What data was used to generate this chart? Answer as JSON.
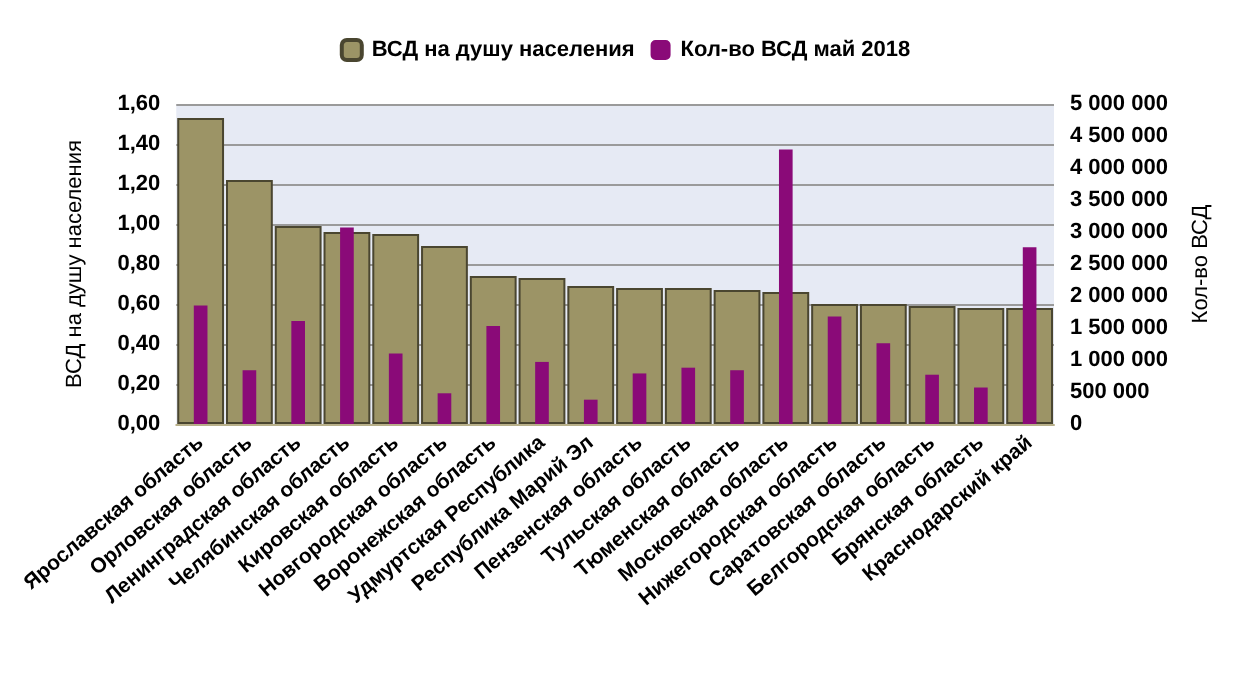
{
  "chart_data": {
    "type": "bar",
    "ylabel": "ВСД на душу населения",
    "y2label": "Кол-во ВСД",
    "categories": [
      "Ярославская область",
      "Орловская область",
      "Ленинградская область",
      "Челябинская область",
      "Кировская область",
      "Новгородская область",
      "Воронежская область",
      "Удмуртская Республика",
      "Республика Марий Эл",
      "Пензенская область",
      "Тульская область",
      "Тюменская область",
      "Московская область",
      "Нижегородская область",
      "Саратовская область",
      "Белгородская область",
      "Брянская область",
      "Краснодарский край"
    ],
    "series": [
      {
        "name": "ВСД на душу населения",
        "color": "#9c9466",
        "values": [
          1.53,
          1.22,
          0.99,
          0.96,
          0.95,
          0.89,
          0.74,
          0.73,
          0.69,
          0.68,
          0.68,
          0.67,
          0.66,
          0.6,
          0.6,
          0.59,
          0.58,
          0.58
        ]
      },
      {
        "name": "Кол-во ВСД май 2018",
        "color": "#8a0a78",
        "axis": "y2",
        "values": [
          1850000,
          840000,
          1610000,
          3070000,
          1100000,
          480000,
          1530000,
          970000,
          380000,
          790000,
          880000,
          840000,
          4290000,
          1680000,
          1260000,
          770000,
          570000,
          2760000
        ]
      }
    ],
    "ylim": [
      0,
      1.6
    ],
    "yticks": [
      {
        "value": 0,
        "label": "0,00"
      },
      {
        "value": 0.2,
        "label": "0,20"
      },
      {
        "value": 0.4,
        "label": "0,40"
      },
      {
        "value": 0.6,
        "label": "0,60"
      },
      {
        "value": 0.8,
        "label": "0,80"
      },
      {
        "value": 1,
        "label": "1,00"
      },
      {
        "value": 1.2,
        "label": "1,20"
      },
      {
        "value": 1.4,
        "label": "1,40"
      },
      {
        "value": 1.6,
        "label": "1,60"
      }
    ],
    "y2lim": [
      0,
      5000000
    ],
    "y2ticks": [
      {
        "value": 0,
        "label": "0"
      },
      {
        "value": 500000,
        "label": "500 000"
      },
      {
        "value": 1000000,
        "label": "1 000 000"
      },
      {
        "value": 1500000,
        "label": "1 500 000"
      },
      {
        "value": 2000000,
        "label": "2 000 000"
      },
      {
        "value": 2500000,
        "label": "2 500 000"
      },
      {
        "value": 3000000,
        "label": "3 000 000"
      },
      {
        "value": 3500000,
        "label": "3 500 000"
      },
      {
        "value": 4000000,
        "label": "4 000 000"
      },
      {
        "value": 4500000,
        "label": "4 500 000"
      },
      {
        "value": 5000000,
        "label": "5 000 000"
      }
    ],
    "grid": "y",
    "legend": "top"
  }
}
